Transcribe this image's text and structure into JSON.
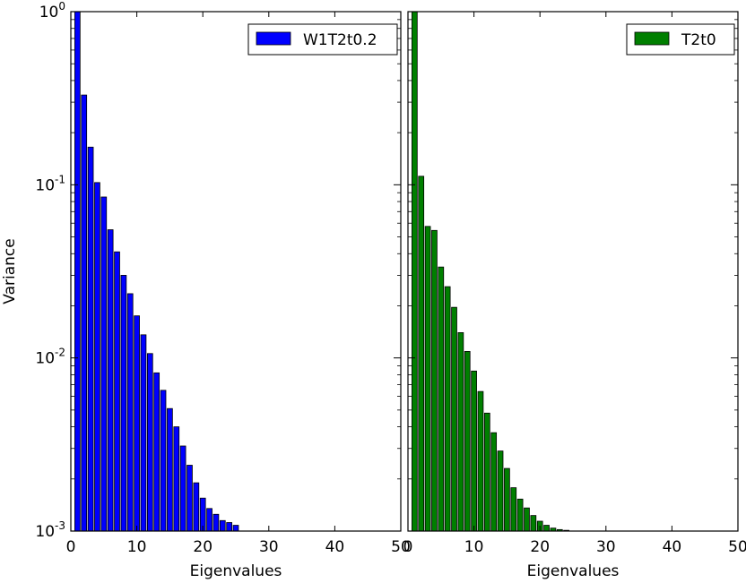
{
  "chart_data": [
    {
      "type": "bar",
      "yscale": "log",
      "xlabel": "Eigenvalues",
      "ylabel": "Variance",
      "xlim": [
        0,
        50
      ],
      "ylim": [
        0.001,
        1
      ],
      "x_ticks": [
        "0",
        "10",
        "20",
        "30",
        "40",
        "50"
      ],
      "y_ticks": [
        {
          "base": "10",
          "exp": "0"
        },
        {
          "base": "10",
          "exp": "-1"
        },
        {
          "base": "10",
          "exp": "-2"
        },
        {
          "base": "10",
          "exp": "-3"
        }
      ],
      "grid": false,
      "legend_position": "top-right",
      "series": [
        {
          "name": "W1T2t0.2",
          "color": "#0000ff",
          "x": [
            1,
            2,
            3,
            4,
            5,
            6,
            7,
            8,
            9,
            10,
            11,
            12,
            13,
            14,
            15,
            16,
            17,
            18,
            19,
            20,
            21,
            22,
            23,
            24,
            25
          ],
          "values": [
            1.0,
            0.33,
            0.165,
            0.103,
            0.085,
            0.055,
            0.041,
            0.03,
            0.0235,
            0.0175,
            0.0136,
            0.0106,
            0.0082,
            0.0065,
            0.0051,
            0.004,
            0.0031,
            0.0024,
            0.0019,
            0.00155,
            0.00135,
            0.00125,
            0.00115,
            0.00112,
            0.00108
          ]
        }
      ]
    },
    {
      "type": "bar",
      "yscale": "log",
      "xlabel": "Eigenvalues",
      "ylabel": "",
      "xlim": [
        0,
        50
      ],
      "ylim": [
        0.001,
        1
      ],
      "x_ticks": [
        "0",
        "10",
        "20",
        "30",
        "40",
        "50"
      ],
      "grid": false,
      "legend_position": "top-right",
      "series": [
        {
          "name": "T2t0",
          "color": "#007f00",
          "x": [
            1,
            2,
            3,
            4,
            5,
            6,
            7,
            8,
            9,
            10,
            11,
            12,
            13,
            14,
            15,
            16,
            17,
            18,
            19,
            20,
            21,
            22,
            23,
            24
          ],
          "values": [
            1.0,
            0.112,
            0.0575,
            0.0545,
            0.0335,
            0.0258,
            0.0196,
            0.014,
            0.0109,
            0.0084,
            0.0064,
            0.0048,
            0.0037,
            0.0029,
            0.0023,
            0.00178,
            0.00153,
            0.00136,
            0.00123,
            0.00114,
            0.00108,
            0.00104,
            0.00102,
            0.00101
          ]
        }
      ]
    }
  ]
}
